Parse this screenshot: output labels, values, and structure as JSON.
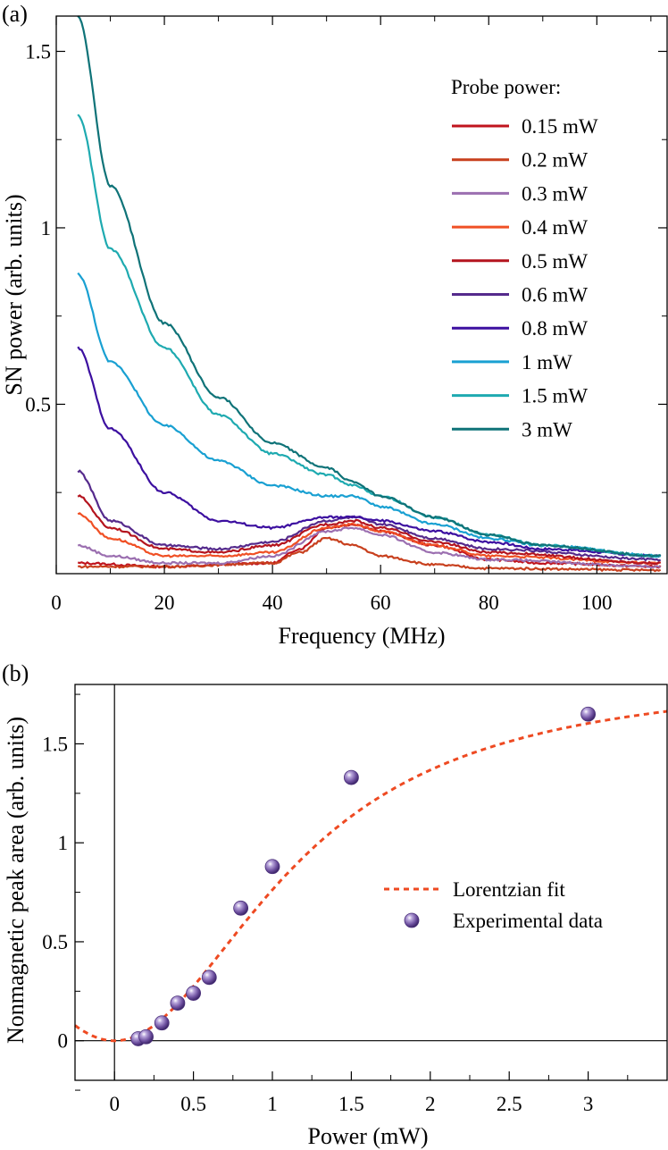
{
  "chart_data": [
    {
      "type": "line",
      "panel_label": "(a)",
      "xlabel": "Frequency (MHz)",
      "ylabel": "SN power (arb. units)",
      "xlim": [
        0,
        113
      ],
      "ylim": [
        0.02,
        1.6
      ],
      "xticks": [
        0,
        20,
        40,
        60,
        80,
        100
      ],
      "yticks": [
        0.5,
        1,
        1.5
      ],
      "xtick_labels": [
        "0",
        "20",
        "40",
        "60",
        "80",
        "100"
      ],
      "ytick_labels": [
        "0.5",
        "1",
        "1.5"
      ],
      "legend_title": "Probe power:",
      "legend_position": "top-right",
      "series": [
        {
          "name": "0.15 mW",
          "color": "#c0141e",
          "p": [
            [
              4,
              0.05
            ],
            [
              20,
              0.04
            ],
            [
              40,
              0.05
            ],
            [
              45,
              0.09
            ],
            [
              50,
              0.15
            ],
            [
              55,
              0.16
            ],
            [
              60,
              0.14
            ],
            [
              70,
              0.1
            ],
            [
              80,
              0.06
            ],
            [
              90,
              0.05
            ],
            [
              112,
              0.04
            ]
          ]
        },
        {
          "name": "0.2 mW",
          "color": "#c8401e",
          "p": [
            [
              4,
              0.04
            ],
            [
              20,
              0.04
            ],
            [
              40,
              0.05
            ],
            [
              45,
              0.08
            ],
            [
              50,
              0.12
            ],
            [
              55,
              0.1
            ],
            [
              60,
              0.07
            ],
            [
              70,
              0.045
            ],
            [
              80,
              0.035
            ],
            [
              112,
              0.03
            ]
          ]
        },
        {
          "name": "0.3 mW",
          "color": "#9b6fb0",
          "p": [
            [
              4,
              0.1
            ],
            [
              10,
              0.07
            ],
            [
              20,
              0.05
            ],
            [
              30,
              0.05
            ],
            [
              40,
              0.07
            ],
            [
              50,
              0.14
            ],
            [
              55,
              0.15
            ],
            [
              60,
              0.13
            ],
            [
              70,
              0.08
            ],
            [
              80,
              0.06
            ],
            [
              112,
              0.04
            ]
          ]
        },
        {
          "name": "0.4 mW",
          "color": "#f05025",
          "p": [
            [
              4,
              0.19
            ],
            [
              10,
              0.12
            ],
            [
              20,
              0.07
            ],
            [
              30,
              0.07
            ],
            [
              40,
              0.08
            ],
            [
              50,
              0.15
            ],
            [
              55,
              0.16
            ],
            [
              60,
              0.14
            ],
            [
              70,
              0.1
            ],
            [
              80,
              0.07
            ],
            [
              112,
              0.05
            ]
          ]
        },
        {
          "name": "0.5 mW",
          "color": "#b4141e",
          "p": [
            [
              4,
              0.24
            ],
            [
              10,
              0.15
            ],
            [
              20,
              0.09
            ],
            [
              30,
              0.08
            ],
            [
              40,
              0.1
            ],
            [
              50,
              0.16
            ],
            [
              55,
              0.17
            ],
            [
              60,
              0.15
            ],
            [
              70,
              0.11
            ],
            [
              80,
              0.08
            ],
            [
              112,
              0.05
            ]
          ]
        },
        {
          "name": "0.6 mW",
          "color": "#552a8c",
          "p": [
            [
              4,
              0.31
            ],
            [
              10,
              0.17
            ],
            [
              20,
              0.1
            ],
            [
              30,
              0.09
            ],
            [
              40,
              0.11
            ],
            [
              50,
              0.17
            ],
            [
              55,
              0.18
            ],
            [
              60,
              0.16
            ],
            [
              70,
              0.12
            ],
            [
              80,
              0.09
            ],
            [
              112,
              0.06
            ]
          ]
        },
        {
          "name": "0.8 mW",
          "color": "#3c0fa0",
          "p": [
            [
              4,
              0.66
            ],
            [
              10,
              0.43
            ],
            [
              20,
              0.25
            ],
            [
              30,
              0.17
            ],
            [
              40,
              0.15
            ],
            [
              50,
              0.18
            ],
            [
              55,
              0.18
            ],
            [
              60,
              0.17
            ],
            [
              70,
              0.14
            ],
            [
              80,
              0.11
            ],
            [
              90,
              0.09
            ],
            [
              112,
              0.07
            ]
          ]
        },
        {
          "name": "1 mW",
          "color": "#19a0d2",
          "p": [
            [
              4,
              0.87
            ],
            [
              10,
              0.62
            ],
            [
              20,
              0.44
            ],
            [
              30,
              0.34
            ],
            [
              40,
              0.27
            ],
            [
              50,
              0.24
            ],
            [
              55,
              0.24
            ],
            [
              60,
              0.21
            ],
            [
              70,
              0.16
            ],
            [
              80,
              0.12
            ],
            [
              90,
              0.1
            ],
            [
              112,
              0.07
            ]
          ]
        },
        {
          "name": "1.5 mW",
          "color": "#1eaab0",
          "p": [
            [
              4,
              1.32
            ],
            [
              10,
              0.94
            ],
            [
              20,
              0.66
            ],
            [
              30,
              0.47
            ],
            [
              40,
              0.36
            ],
            [
              50,
              0.3
            ],
            [
              55,
              0.27
            ],
            [
              60,
              0.24
            ],
            [
              70,
              0.18
            ],
            [
              80,
              0.13
            ],
            [
              90,
              0.1
            ],
            [
              112,
              0.07
            ]
          ]
        },
        {
          "name": "3 mW",
          "color": "#0f7378",
          "p": [
            [
              4,
              1.6
            ],
            [
              10,
              1.12
            ],
            [
              20,
              0.73
            ],
            [
              30,
              0.52
            ],
            [
              40,
              0.39
            ],
            [
              50,
              0.32
            ],
            [
              55,
              0.28
            ],
            [
              60,
              0.24
            ],
            [
              70,
              0.18
            ],
            [
              80,
              0.13
            ],
            [
              90,
              0.1
            ],
            [
              112,
              0.07
            ]
          ]
        }
      ]
    },
    {
      "type": "scatter",
      "panel_label": "(b)",
      "xlabel": "Power (mW)",
      "ylabel": "Nonmagnetic peak area (arb. units)",
      "xlim": [
        -0.25,
        3.5
      ],
      "ylim": [
        -0.2,
        1.8
      ],
      "xticks": [
        0,
        0.5,
        1,
        1.5,
        2,
        2.5,
        3
      ],
      "yticks": [
        0,
        0.5,
        1,
        1.5
      ],
      "xtick_labels": [
        "0",
        "0.5",
        "1",
        "1.5",
        "2",
        "2.5",
        "3"
      ],
      "ytick_labels": [
        "0",
        "0.5",
        "1",
        "1.5"
      ],
      "legend_position": "center-right",
      "fit": {
        "name": "Lorentzian fit",
        "color": "#ee4a22",
        "amplitude": 1.86,
        "gamma": 1.2
      },
      "points": {
        "name": "Experimental data",
        "color": "#6a4c9c",
        "x": [
          0.15,
          0.2,
          0.3,
          0.4,
          0.5,
          0.6,
          0.8,
          1.0,
          1.5,
          3.0
        ],
        "y": [
          0.01,
          0.02,
          0.09,
          0.19,
          0.24,
          0.32,
          0.67,
          0.88,
          1.33,
          1.65
        ]
      }
    }
  ]
}
